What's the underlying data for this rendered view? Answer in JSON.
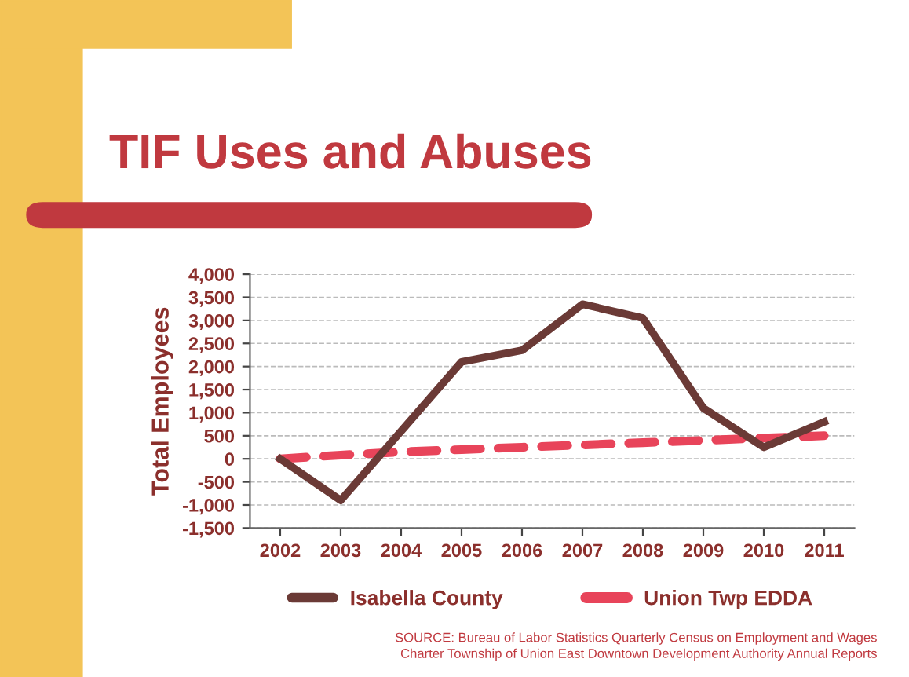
{
  "chart_data": {
    "type": "line",
    "title": "TIF Uses and Abuses",
    "ylabel": "Total Employees",
    "categories": [
      "2002",
      "2003",
      "2004",
      "2005",
      "2006",
      "2007",
      "2008",
      "2009",
      "2010",
      "2011"
    ],
    "series": [
      {
        "name": "Isabella County",
        "color": "#6b3a36",
        "values": [
          0,
          -900,
          600,
          2100,
          2350,
          3350,
          3050,
          1100,
          250,
          800
        ],
        "line_style": "solid"
      },
      {
        "name": "Union Twp EDDA",
        "color": "#e8445a",
        "values": [
          0,
          80,
          150,
          200,
          250,
          300,
          350,
          400,
          450,
          500
        ],
        "line_style": "dashed"
      }
    ],
    "ylim": [
      -1500,
      4000
    ],
    "yticks": [
      {
        "value": -1500,
        "label": "-1,500"
      },
      {
        "value": -1000,
        "label": "-1,000"
      },
      {
        "value": -500,
        "label": "-500"
      },
      0,
      500,
      {
        "value": 1000,
        "label": "1,000"
      },
      {
        "value": 1500,
        "label": "1,500"
      },
      {
        "value": 2000,
        "label": "2,000"
      },
      {
        "value": 2500,
        "label": "2,500"
      },
      {
        "value": 3000,
        "label": "3,000"
      },
      {
        "value": 3500,
        "label": "3,500"
      },
      {
        "value": 4000,
        "label": "4,000"
      }
    ],
    "grid": "y",
    "legend": "bottom",
    "marker": "none",
    "annotations": [
      "SOURCE: Bureau of Labor Statistics Quarterly Census on Employment and Wages\nCharter Township of Union East Downtown Development Authority Annual Reports"
    ]
  }
}
